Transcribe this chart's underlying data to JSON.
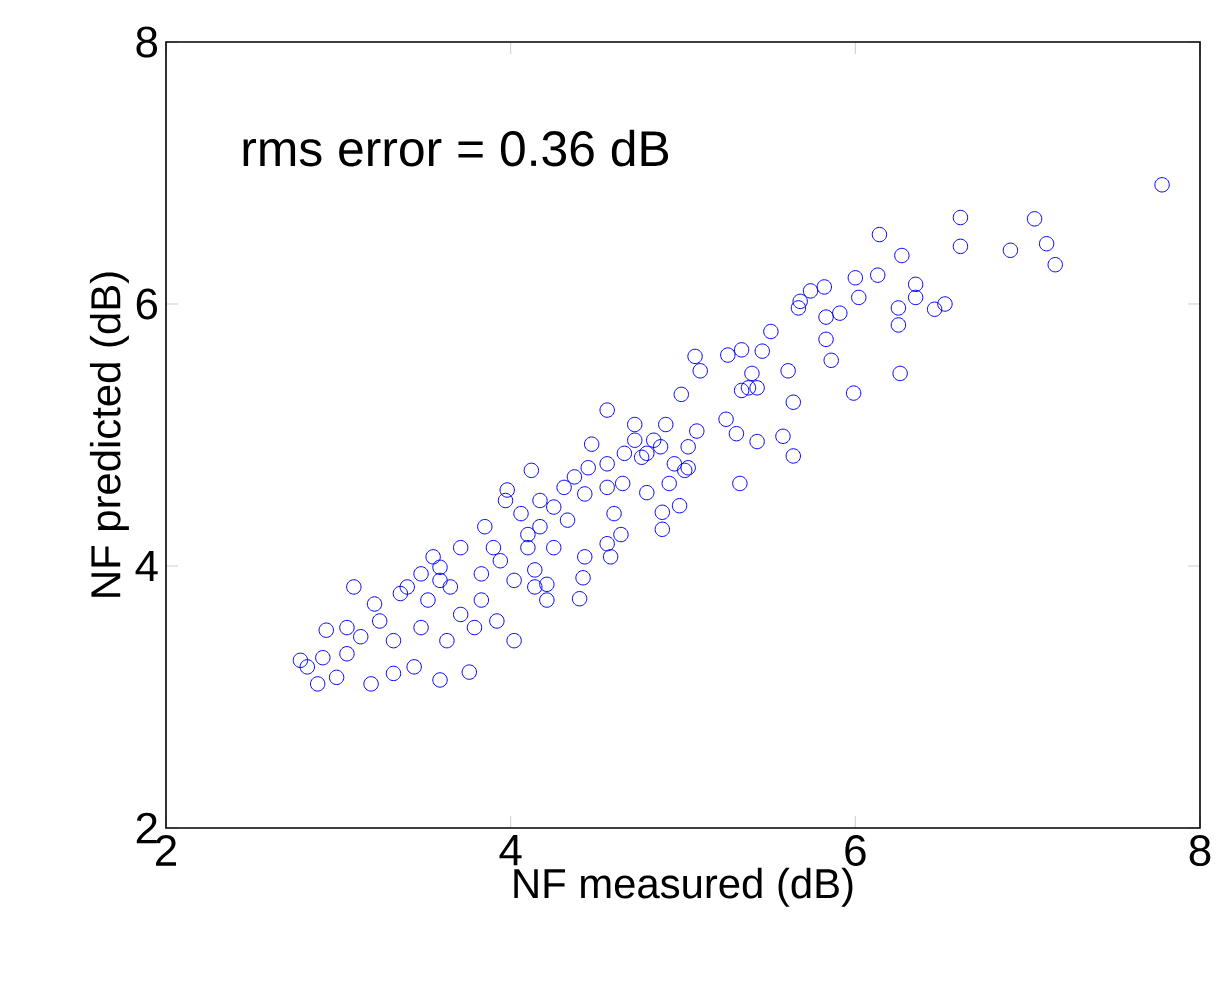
{
  "chart_data": {
    "type": "scatter",
    "xlabel": "NF measured (dB)",
    "ylabel": "NF predicted (dB)",
    "annotations": [
      "rms error = 0.36 dB"
    ],
    "xlim": [
      2,
      8
    ],
    "ylim": [
      2,
      8
    ],
    "xticks": [
      2,
      4,
      6,
      8
    ],
    "yticks": [
      2,
      4,
      6,
      8
    ],
    "marker": "circle",
    "grid": false,
    "series": [
      {
        "color": "#0000ff",
        "x": [
          7.78,
          6.61,
          7.04,
          6.61,
          7.11,
          7.16,
          6.9,
          6.14,
          6.27,
          6.35,
          6.35,
          6.52,
          6.46,
          6.25,
          6.25,
          6.26,
          5.99,
          6.13,
          6.0,
          6.02,
          5.91,
          5.83,
          5.82,
          5.74,
          5.67,
          5.68,
          5.83,
          5.86,
          5.51,
          5.64,
          5.58,
          5.64,
          5.43,
          5.33,
          5.07,
          5.1,
          5.26,
          5.34,
          5.46,
          5.61,
          5.43,
          5.34,
          4.99,
          4.56,
          4.72,
          4.9,
          5.25,
          5.31,
          5.08,
          5.03,
          4.47,
          4.56,
          4.66,
          4.76,
          4.83,
          4.87,
          4.95,
          5.01,
          4.12,
          4.79,
          4.92,
          4.98,
          4.88,
          4.88,
          4.65,
          4.45,
          4.31,
          4.43,
          4.25,
          4.17,
          3.98,
          3.97,
          4.6,
          4.64,
          4.56,
          4.58,
          4.43,
          4.42,
          4.4,
          4.21,
          4.21,
          4.14,
          4.02,
          3.85,
          3.71,
          3.55,
          3.48,
          3.59,
          3.09,
          2.93,
          2.82,
          2.88,
          2.99,
          3.19,
          3.44,
          3.59,
          3.76,
          2.91,
          3.05,
          3.32,
          3.13,
          3.24,
          3.36,
          3.52,
          3.65,
          3.83,
          3.94,
          4.02,
          3.92,
          3.79,
          3.63,
          3.48,
          3.32,
          3.21,
          3.71,
          3.83,
          4.1,
          4.25,
          4.33,
          4.17,
          4.06,
          4.14,
          4.1,
          3.9,
          3.59,
          3.4,
          3.05,
          2.78,
          4.72,
          4.79,
          4.37,
          4.56,
          5.03,
          5.4,
          5.38
        ],
        "values": [
          6.91,
          6.66,
          6.65,
          6.44,
          6.46,
          6.3,
          6.41,
          6.53,
          6.37,
          6.15,
          6.05,
          6.0,
          5.96,
          5.97,
          5.84,
          5.47,
          5.32,
          6.22,
          6.2,
          6.05,
          5.93,
          5.9,
          6.13,
          6.1,
          5.97,
          6.02,
          5.73,
          5.57,
          5.79,
          5.25,
          4.99,
          4.84,
          4.95,
          4.63,
          5.6,
          5.49,
          5.61,
          5.65,
          5.64,
          5.49,
          5.36,
          5.34,
          5.31,
          5.19,
          5.08,
          5.08,
          5.12,
          5.01,
          5.03,
          4.91,
          4.93,
          4.78,
          4.86,
          4.83,
          4.96,
          4.91,
          4.78,
          4.73,
          4.73,
          4.56,
          4.63,
          4.46,
          4.41,
          4.28,
          4.63,
          4.75,
          4.6,
          4.55,
          4.45,
          4.5,
          4.58,
          4.5,
          4.4,
          4.24,
          4.17,
          4.07,
          4.07,
          3.91,
          3.75,
          3.86,
          3.74,
          3.97,
          3.89,
          4.3,
          4.14,
          4.07,
          3.94,
          3.89,
          3.84,
          3.51,
          3.23,
          3.1,
          3.15,
          3.1,
          3.23,
          3.13,
          3.19,
          3.3,
          3.33,
          3.18,
          3.46,
          3.58,
          3.79,
          3.74,
          3.84,
          3.94,
          4.04,
          3.43,
          3.58,
          3.53,
          3.43,
          3.53,
          3.43,
          3.71,
          3.63,
          3.74,
          4.14,
          4.14,
          4.35,
          4.3,
          4.4,
          3.84,
          4.24,
          4.14,
          3.99,
          3.84,
          3.53,
          3.28,
          4.96,
          4.86,
          4.68,
          4.6,
          4.75,
          5.47,
          5.36
        ]
      }
    ]
  }
}
